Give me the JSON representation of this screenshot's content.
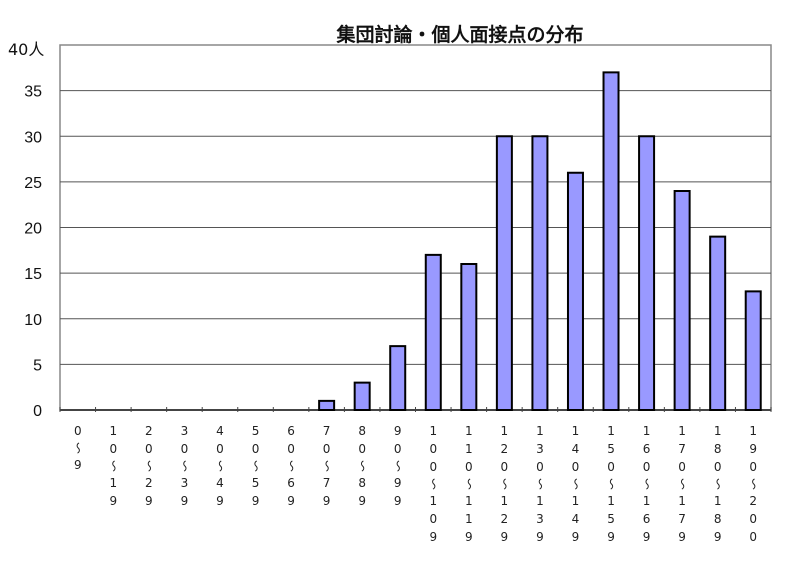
{
  "chart_data": {
    "type": "bar",
    "title": "集団討論・個人面接点の分布",
    "ylabel": "人",
    "xlabel": "",
    "ylim": [
      0,
      40
    ],
    "yticks": [
      0,
      5,
      10,
      15,
      20,
      25,
      30,
      35,
      40
    ],
    "grid": true,
    "categories": [
      "0〜9",
      "10〜19",
      "20〜29",
      "30〜39",
      "40〜49",
      "50〜59",
      "60〜69",
      "70〜79",
      "80〜89",
      "90〜99",
      "100〜109",
      "110〜119",
      "120〜129",
      "130〜139",
      "140〜149",
      "150〜159",
      "160〜169",
      "170〜179",
      "180〜189",
      "190〜200"
    ],
    "values": [
      0,
      0,
      0,
      0,
      0,
      0,
      0,
      1,
      3,
      7,
      17,
      16,
      30,
      30,
      26,
      37,
      30,
      24,
      19,
      13
    ],
    "colors": {
      "bar": "#9999ff",
      "bar_edge": "#000000",
      "grid": "#555555"
    }
  }
}
